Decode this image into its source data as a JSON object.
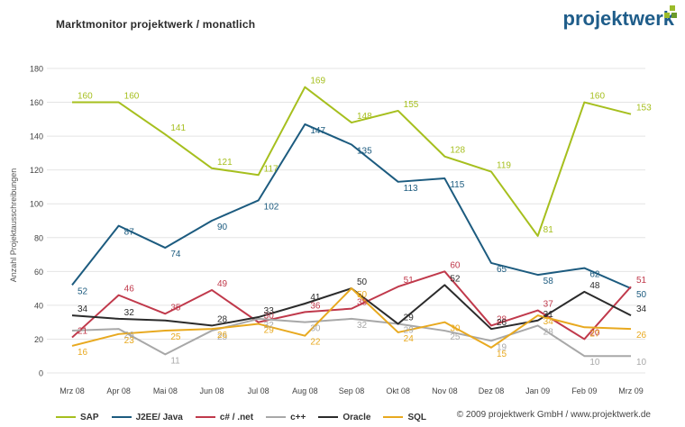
{
  "title": "Marktmonitor projektwerk / monatlich",
  "logo": {
    "text": "projektwerk",
    "colors": [
      "#9bbb2a",
      "#1f5d8a"
    ]
  },
  "footer": "© 2009 projektwerk GmbH / www.projektwerk.de",
  "chart_data": {
    "type": "line",
    "ylabel": "Anzahl Projektausschreibungen",
    "ylim": [
      0,
      180
    ],
    "yticks": [
      "0",
      "20",
      "40",
      "60",
      "80",
      "100",
      "120",
      "140",
      "160",
      "180"
    ],
    "categories": [
      "Mrz 08",
      "Apr 08",
      "Mai 08",
      "Jun 08",
      "Jul 08",
      "Aug 08",
      "Sep 08",
      "Okt 08",
      "Nov 08",
      "Dez 08",
      "Jan 09",
      "Feb 09",
      "Mrz 09"
    ],
    "grid": true,
    "legend_position": "bottom",
    "series": [
      {
        "name": "SAP",
        "color": "#a6bf1e",
        "values": [
          160,
          160,
          141,
          121,
          117,
          169,
          148,
          155,
          128,
          119,
          81,
          160,
          153
        ],
        "labels": [
          "160",
          "160",
          "141",
          "121",
          "117",
          "169",
          "148",
          "155",
          "128",
          "119",
          "81",
          "160",
          "153"
        ]
      },
      {
        "name": "J2EE/ Java",
        "color": "#1c5b7f",
        "values": [
          52,
          87,
          74,
          90,
          102,
          147,
          135,
          113,
          115,
          65,
          58,
          62,
          50
        ],
        "labels": [
          "52",
          "87",
          "74",
          "90",
          "102",
          "147",
          "135",
          "113",
          "115",
          "65",
          "58",
          "62",
          "50"
        ]
      },
      {
        "name": "c# / .net",
        "color": "#c0394b",
        "values": [
          21,
          46,
          35,
          49,
          30,
          36,
          38,
          51,
          60,
          28,
          37,
          20,
          51
        ],
        "labels": [
          "21",
          "46",
          "35",
          "49",
          "30",
          "36",
          "38",
          "51",
          "60",
          "28",
          "37",
          "20",
          "51"
        ]
      },
      {
        "name": "c++",
        "color": "#a8a8a8",
        "values": [
          25,
          26,
          11,
          25,
          32,
          30,
          32,
          29,
          25,
          19,
          28,
          10,
          10
        ],
        "labels": [
          "",
          "26",
          "11",
          "25",
          "32",
          "30",
          "32",
          "29",
          "25",
          "19",
          "28",
          "10",
          "10"
        ]
      },
      {
        "name": "Oracle",
        "color": "#2b2b2b",
        "values": [
          34,
          32,
          31,
          28,
          33,
          41,
          50,
          29,
          52,
          26,
          31,
          48,
          34
        ],
        "labels": [
          "34",
          "32",
          "",
          "28",
          "33",
          "41",
          "50",
          "29",
          "52",
          "26",
          "31",
          "48",
          "34"
        ]
      },
      {
        "name": "SQL",
        "color": "#e8a91f",
        "values": [
          16,
          23,
          25,
          26,
          29,
          22,
          50,
          24,
          30,
          15,
          34,
          27,
          26
        ],
        "labels": [
          "16",
          "23",
          "25",
          "26",
          "29",
          "22",
          "50",
          "24",
          "30",
          "15",
          "34",
          "27",
          "26"
        ]
      }
    ]
  }
}
